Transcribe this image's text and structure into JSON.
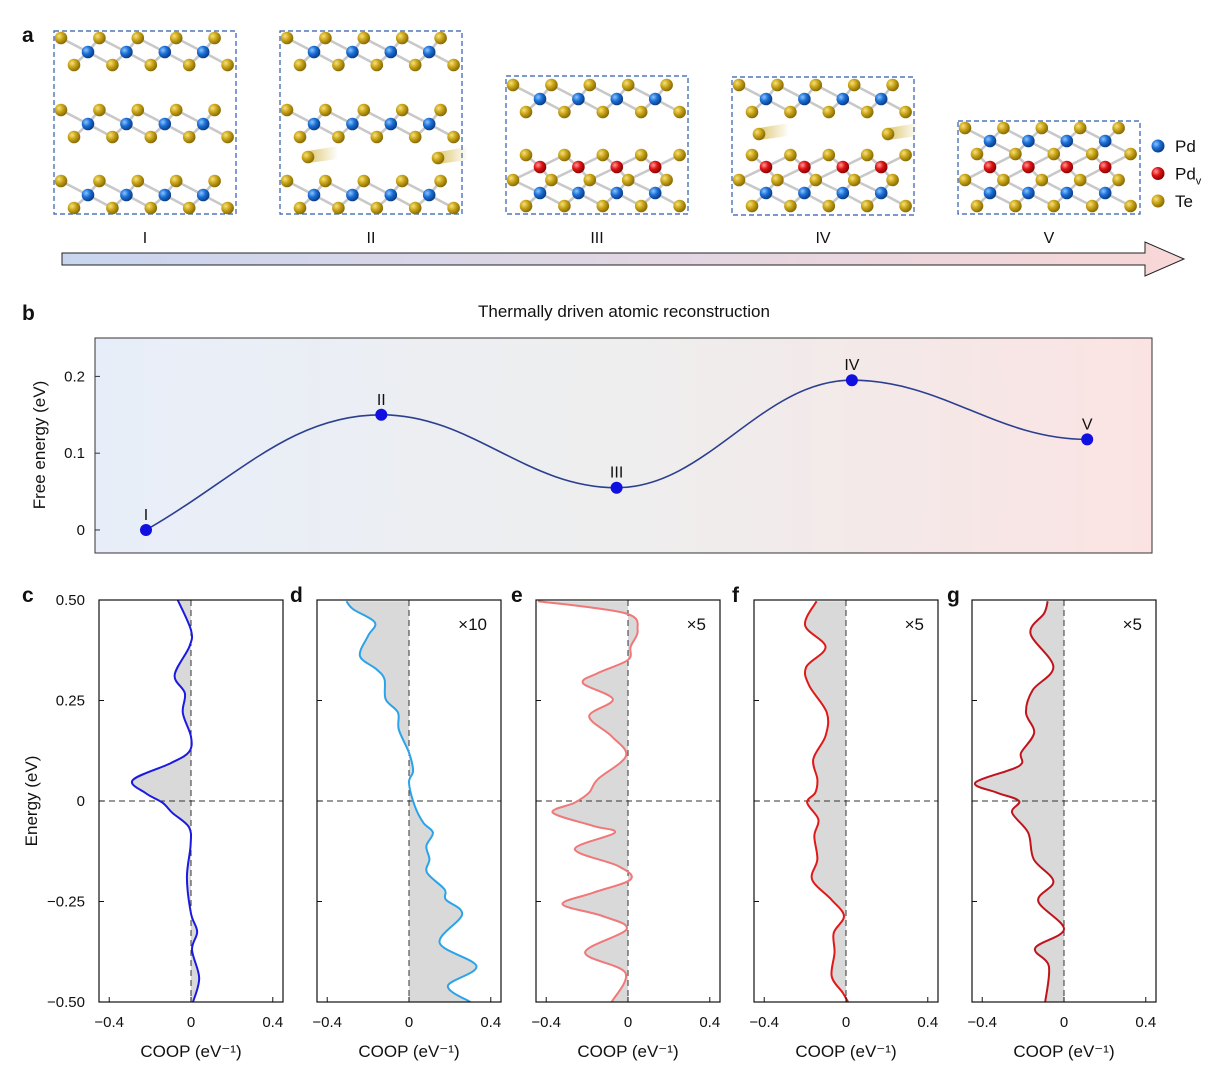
{
  "panel_labels": {
    "a": "a",
    "b": "b",
    "c": "c",
    "d": "d",
    "e": "e",
    "f": "f",
    "g": "g"
  },
  "panel_a": {
    "stage_labels": [
      "I",
      "II",
      "III",
      "IV",
      "V"
    ],
    "legend": [
      {
        "label": "Pd",
        "sub": "",
        "color": "#1a6fd6"
      },
      {
        "label": "Pd",
        "sub": "v",
        "color": "#e01212"
      },
      {
        "label": "Te",
        "sub": "",
        "color": "#c9a418"
      }
    ],
    "arrow_colors": [
      "#c9d5ef",
      "#f8d7d7"
    ],
    "caption": "Thermally driven atomic reconstruction"
  },
  "chart_data": [
    {
      "panel": "b",
      "type": "line",
      "categories": [
        "I",
        "II",
        "III",
        "IV",
        "V"
      ],
      "values": [
        0.0,
        0.15,
        0.055,
        0.195,
        0.118
      ],
      "ylabel": "Free energy (eV)",
      "xlabel": "",
      "yticks": [
        "0",
        "0.1",
        "0.2"
      ],
      "ytick_values": [
        0,
        0.1,
        0.2
      ],
      "ylim": [
        -0.03,
        0.25
      ],
      "line_color": "#2b3f8f",
      "point_color": "#1010e0",
      "background_gradient": [
        "#e8eef9",
        "#fbe3e3"
      ],
      "grid": false
    },
    {
      "panel": "c",
      "type": "line",
      "scale_label": "",
      "xlabel": "COOP (eV⁻¹)",
      "ylabel": "Energy (eV)",
      "xticks": [
        "−0.4",
        "0",
        "0.4"
      ],
      "xtick_values": [
        -0.4,
        0,
        0.4
      ],
      "yticks": [
        "0.50",
        "0.25",
        "0",
        "−0.25",
        "−0.50"
      ],
      "ytick_values": [
        0.5,
        0.25,
        0,
        -0.25,
        -0.5
      ],
      "xlim": [
        -0.45,
        0.45
      ],
      "ylim": [
        -0.5,
        0.5
      ],
      "color": "#1a1ae0",
      "fill": "#d9d9d9",
      "points": [
        [
          -0.065,
          0.5
        ],
        [
          0,
          0.425
        ],
        [
          -0.008,
          0.384
        ],
        [
          -0.08,
          0.313
        ],
        [
          -0.03,
          0.268
        ],
        [
          -0.04,
          0.219
        ],
        [
          0,
          0.16
        ],
        [
          -0.01,
          0.122
        ],
        [
          -0.1,
          0.094
        ],
        [
          -0.285,
          0.052
        ],
        [
          -0.22,
          0.019
        ],
        [
          -0.14,
          -0.004
        ],
        [
          -0.09,
          -0.03
        ],
        [
          -0.01,
          -0.065
        ],
        [
          -0.002,
          -0.11
        ],
        [
          -0.02,
          -0.19
        ],
        [
          0,
          -0.28
        ],
        [
          0.03,
          -0.325
        ],
        [
          0.005,
          -0.37
        ],
        [
          0.04,
          -0.44
        ],
        [
          0.01,
          -0.5
        ]
      ]
    },
    {
      "panel": "d",
      "type": "line",
      "scale_label": "×10",
      "xlabel": "COOP (eV⁻¹)",
      "ylabel": "",
      "xticks": [
        "−0.4",
        "0",
        "0.4"
      ],
      "xtick_values": [
        -0.4,
        0,
        0.4
      ],
      "xlim": [
        -0.45,
        0.45
      ],
      "ylim": [
        -0.5,
        0.5
      ],
      "color": "#2aa3e8",
      "fill": "#d9d9d9",
      "points": [
        [
          -0.306,
          0.497
        ],
        [
          -0.273,
          0.477
        ],
        [
          -0.167,
          0.444
        ],
        [
          -0.2,
          0.411
        ],
        [
          -0.24,
          0.361
        ],
        [
          -0.16,
          0.328
        ],
        [
          -0.12,
          0.303
        ],
        [
          -0.114,
          0.253
        ],
        [
          -0.054,
          0.22
        ],
        [
          -0.05,
          0.178
        ],
        [
          0,
          0.12
        ],
        [
          0.02,
          0.075
        ],
        [
          0,
          0.046
        ],
        [
          0.028,
          -0.012
        ],
        [
          0.07,
          -0.054
        ],
        [
          0.117,
          -0.079
        ],
        [
          0.085,
          -0.112
        ],
        [
          0.1,
          -0.145
        ],
        [
          0.088,
          -0.178
        ],
        [
          0.174,
          -0.22
        ],
        [
          0.18,
          -0.245
        ],
        [
          0.26,
          -0.282
        ],
        [
          0.15,
          -0.353
        ],
        [
          0.33,
          -0.411
        ],
        [
          0.19,
          -0.46
        ],
        [
          0.3,
          -0.5
        ]
      ]
    },
    {
      "panel": "e",
      "type": "line",
      "scale_label": "×5",
      "xlabel": "COOP (eV⁻¹)",
      "ylabel": "",
      "xticks": [
        "−0.4",
        "0",
        "0.4"
      ],
      "xtick_values": [
        -0.4,
        0,
        0.4
      ],
      "xlim": [
        -0.45,
        0.45
      ],
      "ylim": [
        -0.5,
        0.5
      ],
      "color": "#f07878",
      "fill": "#d9d9d9",
      "points": [
        [
          -0.44,
          0.497
        ],
        [
          -0.013,
          0.467
        ],
        [
          0.047,
          0.425
        ],
        [
          0.013,
          0.384
        ],
        [
          0,
          0.351
        ],
        [
          -0.148,
          0.318
        ],
        [
          -0.22,
          0.293
        ],
        [
          -0.074,
          0.253
        ],
        [
          -0.19,
          0.211
        ],
        [
          -0.08,
          0.161
        ],
        [
          -0.01,
          0.112
        ],
        [
          -0.148,
          0.054
        ],
        [
          -0.19,
          0.021
        ],
        [
          -0.26,
          -0.004
        ],
        [
          -0.368,
          -0.029
        ],
        [
          -0.17,
          -0.062
        ],
        [
          -0.065,
          -0.079
        ],
        [
          -0.26,
          -0.12
        ],
        [
          -0.047,
          -0.162
        ],
        [
          0.013,
          -0.195
        ],
        [
          -0.17,
          -0.228
        ],
        [
          -0.32,
          -0.257
        ],
        [
          -0.126,
          -0.286
        ],
        [
          -0.007,
          -0.319
        ],
        [
          -0.21,
          -0.377
        ],
        [
          -0.013,
          -0.427
        ],
        [
          -0.08,
          -0.5
        ]
      ]
    },
    {
      "panel": "f",
      "type": "line",
      "scale_label": "×5",
      "xlabel": "COOP (eV⁻¹)",
      "ylabel": "",
      "xticks": [
        "−0.4",
        "0",
        "0.4"
      ],
      "xtick_values": [
        -0.4,
        0,
        0.4
      ],
      "xlim": [
        -0.45,
        0.45
      ],
      "ylim": [
        -0.5,
        0.5
      ],
      "color": "#e01818",
      "fill": "#d9d9d9",
      "points": [
        [
          -0.144,
          0.497
        ],
        [
          -0.2,
          0.437
        ],
        [
          -0.1,
          0.383
        ],
        [
          -0.195,
          0.333
        ],
        [
          -0.18,
          0.287
        ],
        [
          -0.094,
          0.22
        ],
        [
          -0.1,
          0.162
        ],
        [
          -0.16,
          0.104
        ],
        [
          -0.14,
          0.054
        ],
        [
          -0.15,
          0.021
        ],
        [
          -0.19,
          -0.004
        ],
        [
          -0.135,
          -0.046
        ],
        [
          -0.155,
          -0.087
        ],
        [
          -0.14,
          -0.145
        ],
        [
          -0.166,
          -0.195
        ],
        [
          -0.072,
          -0.245
        ],
        [
          -0.01,
          -0.286
        ],
        [
          -0.06,
          -0.328
        ],
        [
          -0.056,
          -0.377
        ],
        [
          -0.07,
          -0.436
        ],
        [
          -0.016,
          -0.477
        ],
        [
          0.01,
          -0.5
        ]
      ]
    },
    {
      "panel": "g",
      "type": "line",
      "scale_label": "×5",
      "xlabel": "COOP (eV⁻¹)",
      "ylabel": "",
      "xticks": [
        "−0.4",
        "0",
        "0.4"
      ],
      "xtick_values": [
        -0.4,
        0,
        0.4
      ],
      "xlim": [
        -0.45,
        0.45
      ],
      "ylim": [
        -0.5,
        0.5
      ],
      "color": "#c0141c",
      "fill": "#d9d9d9",
      "points": [
        [
          -0.08,
          0.497
        ],
        [
          -0.097,
          0.467
        ],
        [
          -0.164,
          0.417
        ],
        [
          -0.052,
          0.334
        ],
        [
          -0.153,
          0.276
        ],
        [
          -0.186,
          0.22
        ],
        [
          -0.146,
          0.17
        ],
        [
          -0.21,
          0.12
        ],
        [
          -0.22,
          0.087
        ],
        [
          -0.433,
          0.046
        ],
        [
          -0.33,
          0.021
        ],
        [
          -0.22,
          0
        ],
        [
          -0.254,
          -0.029
        ],
        [
          -0.175,
          -0.079
        ],
        [
          -0.148,
          -0.145
        ],
        [
          -0.052,
          -0.2
        ],
        [
          -0.126,
          -0.249
        ],
        [
          0,
          -0.319
        ],
        [
          -0.141,
          -0.366
        ],
        [
          -0.074,
          -0.411
        ],
        [
          -0.092,
          -0.5
        ]
      ]
    }
  ]
}
